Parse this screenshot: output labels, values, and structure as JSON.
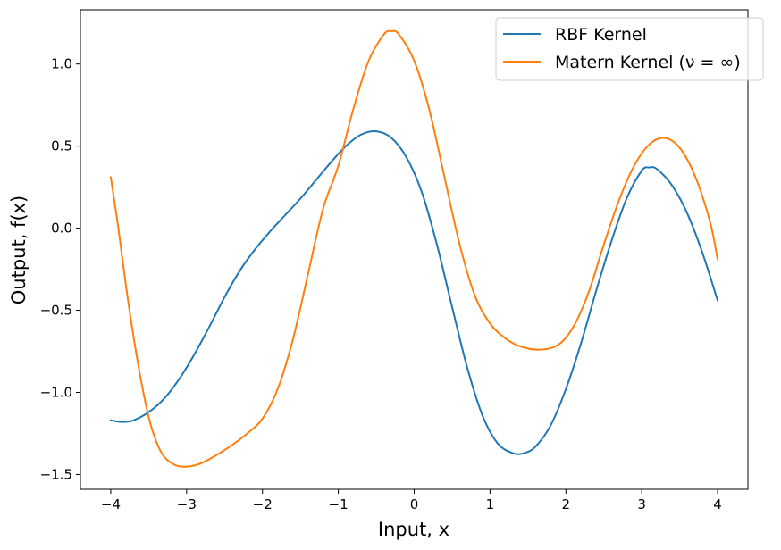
{
  "chart_data": {
    "type": "line",
    "title": "",
    "xlabel": "Input, x",
    "ylabel": "Output, f(x)",
    "xlim": [
      -4.4,
      4.4
    ],
    "ylim": [
      -1.59,
      1.33
    ],
    "xticks": [
      -4,
      -3,
      -2,
      -1,
      0,
      1,
      2,
      3,
      4
    ],
    "xtick_labels": [
      "−4",
      "−3",
      "−2",
      "−1",
      "0",
      "1",
      "2",
      "3",
      "4"
    ],
    "yticks": [
      -1.5,
      -1.0,
      -0.5,
      0.0,
      0.5,
      1.0
    ],
    "ytick_labels": [
      "−1.5",
      "−1.0",
      "−0.5",
      "0.0",
      "0.5",
      "1.0"
    ],
    "grid": false,
    "legend_position": "upper right",
    "series": [
      {
        "name": "RBF Kernel",
        "color": "#1f77b4",
        "points": [
          [
            -4.0,
            -1.17
          ],
          [
            -3.85,
            -1.18
          ],
          [
            -3.7,
            -1.17
          ],
          [
            -3.5,
            -1.12
          ],
          [
            -3.3,
            -1.04
          ],
          [
            -3.1,
            -0.92
          ],
          [
            -2.9,
            -0.77
          ],
          [
            -2.7,
            -0.6
          ],
          [
            -2.5,
            -0.42
          ],
          [
            -2.3,
            -0.26
          ],
          [
            -2.1,
            -0.13
          ],
          [
            -1.9,
            -0.02
          ],
          [
            -1.7,
            0.08
          ],
          [
            -1.5,
            0.18
          ],
          [
            -1.3,
            0.29
          ],
          [
            -1.1,
            0.4
          ],
          [
            -0.9,
            0.5
          ],
          [
            -0.7,
            0.57
          ],
          [
            -0.5,
            0.59
          ],
          [
            -0.3,
            0.55
          ],
          [
            -0.1,
            0.43
          ],
          [
            0.1,
            0.22
          ],
          [
            0.3,
            -0.1
          ],
          [
            0.5,
            -0.48
          ],
          [
            0.7,
            -0.85
          ],
          [
            0.9,
            -1.14
          ],
          [
            1.1,
            -1.31
          ],
          [
            1.3,
            -1.37
          ],
          [
            1.45,
            -1.37
          ],
          [
            1.6,
            -1.33
          ],
          [
            1.8,
            -1.2
          ],
          [
            2.0,
            -0.98
          ],
          [
            2.2,
            -0.7
          ],
          [
            2.4,
            -0.38
          ],
          [
            2.6,
            -0.08
          ],
          [
            2.8,
            0.18
          ],
          [
            3.0,
            0.35
          ],
          [
            3.1,
            0.37
          ],
          [
            3.2,
            0.36
          ],
          [
            3.4,
            0.26
          ],
          [
            3.6,
            0.09
          ],
          [
            3.8,
            -0.15
          ],
          [
            4.0,
            -0.44
          ]
        ]
      },
      {
        "name": "Matern Kernel (ν = ∞)",
        "color": "#ff7f0e",
        "points": [
          [
            -4.0,
            0.31
          ],
          [
            -3.9,
            0.0
          ],
          [
            -3.8,
            -0.35
          ],
          [
            -3.7,
            -0.66
          ],
          [
            -3.6,
            -0.93
          ],
          [
            -3.5,
            -1.15
          ],
          [
            -3.4,
            -1.3
          ],
          [
            -3.3,
            -1.39
          ],
          [
            -3.2,
            -1.43
          ],
          [
            -3.1,
            -1.45
          ],
          [
            -2.95,
            -1.45
          ],
          [
            -2.8,
            -1.43
          ],
          [
            -2.6,
            -1.38
          ],
          [
            -2.4,
            -1.32
          ],
          [
            -2.2,
            -1.25
          ],
          [
            -2.0,
            -1.16
          ],
          [
            -1.8,
            -0.98
          ],
          [
            -1.6,
            -0.68
          ],
          [
            -1.4,
            -0.28
          ],
          [
            -1.2,
            0.12
          ],
          [
            -1.0,
            0.38
          ],
          [
            -0.8,
            0.73
          ],
          [
            -0.6,
            1.02
          ],
          [
            -0.4,
            1.18
          ],
          [
            -0.3,
            1.2
          ],
          [
            -0.2,
            1.18
          ],
          [
            0.0,
            1.02
          ],
          [
            0.2,
            0.72
          ],
          [
            0.4,
            0.31
          ],
          [
            0.6,
            -0.1
          ],
          [
            0.8,
            -0.41
          ],
          [
            1.0,
            -0.58
          ],
          [
            1.2,
            -0.67
          ],
          [
            1.4,
            -0.72
          ],
          [
            1.65,
            -0.74
          ],
          [
            1.9,
            -0.71
          ],
          [
            2.1,
            -0.6
          ],
          [
            2.3,
            -0.39
          ],
          [
            2.5,
            -0.1
          ],
          [
            2.7,
            0.17
          ],
          [
            2.9,
            0.38
          ],
          [
            3.1,
            0.51
          ],
          [
            3.3,
            0.55
          ],
          [
            3.5,
            0.49
          ],
          [
            3.7,
            0.32
          ],
          [
            3.9,
            0.04
          ],
          [
            4.0,
            -0.19
          ]
        ]
      }
    ]
  }
}
